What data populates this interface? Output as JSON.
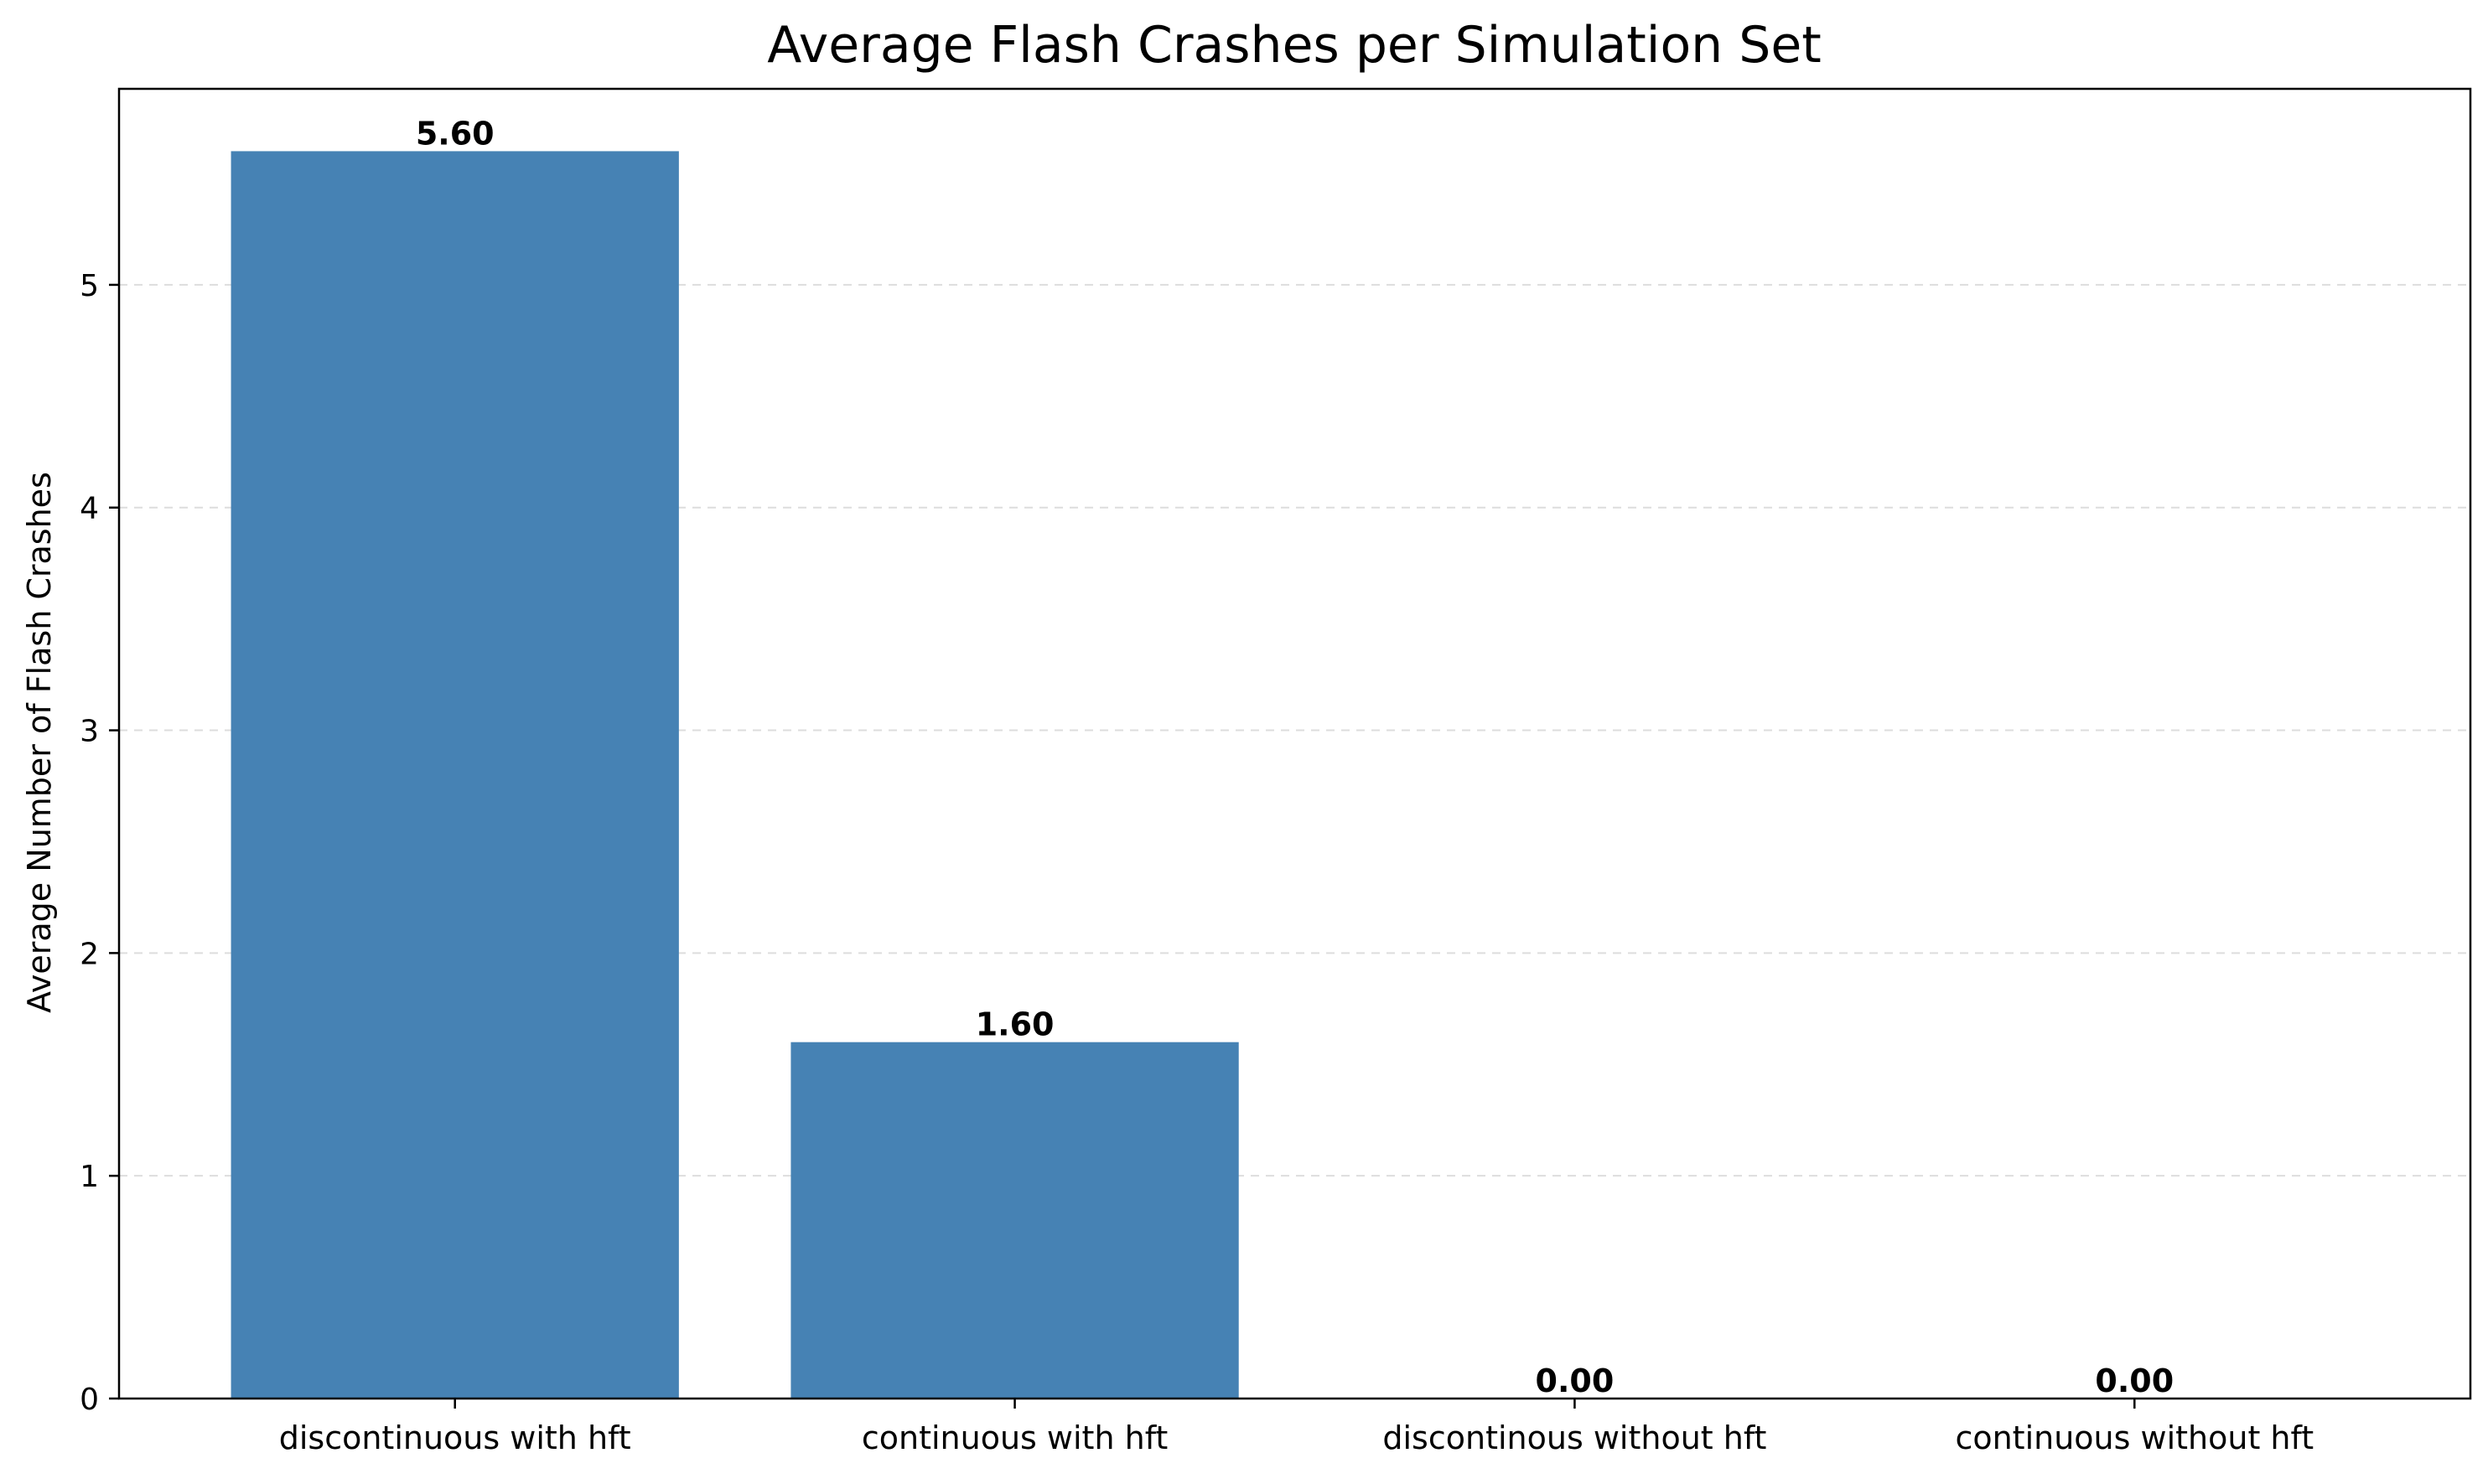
{
  "chart_data": {
    "type": "bar",
    "title": "Average Flash Crashes per Simulation Set",
    "xlabel": "",
    "ylabel": "Average Number of Flash Crashes",
    "categories": [
      "discontinuous with hft",
      "continuous with hft",
      "discontinous without hft",
      "continuous without hft"
    ],
    "values": [
      5.6,
      1.6,
      0.0,
      0.0
    ],
    "data_labels": [
      "5.60",
      "1.60",
      "0.00",
      "0.00"
    ],
    "ylim": [
      0,
      5.88
    ],
    "yticks": [
      0,
      1,
      2,
      3,
      4,
      5
    ],
    "grid": "y-dashed",
    "legend": "none",
    "bar_color": "#4682b4",
    "grid_color": "#dddddd"
  }
}
